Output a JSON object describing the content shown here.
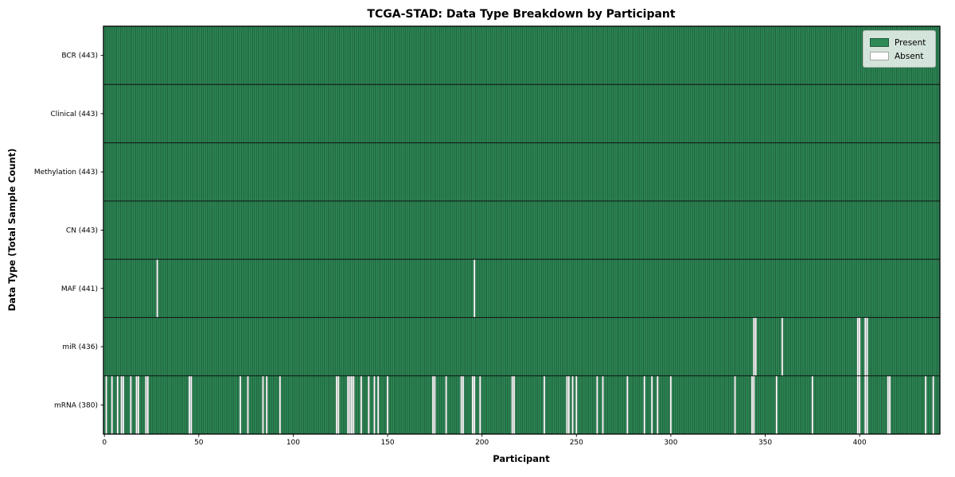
{
  "chart_data": {
    "type": "heatmap",
    "title": "TCGA-STAD: Data Type Breakdown by Participant",
    "xlabel": "Participant",
    "ylabel": "Data Type (Total Sample Count)",
    "n_participants": 443,
    "x_ticks": [
      0,
      50,
      100,
      150,
      200,
      250,
      300,
      350,
      400
    ],
    "grid": false,
    "legend": {
      "position": "upper right",
      "items": [
        {
          "label": "Present",
          "color": "#2e8b57"
        },
        {
          "label": "Absent",
          "color": "#ffffff"
        }
      ]
    },
    "colors": {
      "present": "#2e8b57",
      "absent": "#ffffff",
      "bar_edge": "#0d2417",
      "spine": "#000000"
    },
    "rows": [
      {
        "name": "BCR",
        "label": "BCR (443)",
        "present_count": 443,
        "absent_participants": []
      },
      {
        "name": "Clinical",
        "label": "Clinical (443)",
        "present_count": 443,
        "absent_participants": []
      },
      {
        "name": "Methylation",
        "label": "Methylation (443)",
        "present_count": 443,
        "absent_participants": []
      },
      {
        "name": "CN",
        "label": "CN (443)",
        "present_count": 443,
        "absent_participants": []
      },
      {
        "name": "MAF",
        "label": "MAF (441)",
        "present_count": 441,
        "absent_participants": [
          28,
          196
        ]
      },
      {
        "name": "miR",
        "label": "miR (436)",
        "present_count": 436,
        "absent_participants": [
          344,
          345,
          359,
          399,
          400,
          403,
          404
        ]
      },
      {
        "name": "mRNA",
        "label": "mRNA (380)",
        "present_count": 380,
        "absent_participants": [
          1,
          4,
          7,
          9,
          10,
          14,
          17,
          18,
          22,
          23,
          45,
          46,
          72,
          76,
          84,
          86,
          93,
          123,
          124,
          129,
          130,
          131,
          132,
          136,
          140,
          143,
          145,
          150,
          174,
          175,
          181,
          189,
          190,
          195,
          196,
          199,
          216,
          217,
          233,
          245,
          246,
          248,
          250,
          261,
          264,
          277,
          286,
          290,
          293,
          300,
          334,
          343,
          344,
          356,
          375,
          399,
          400,
          403,
          404,
          415,
          416,
          435,
          439
        ]
      }
    ]
  }
}
